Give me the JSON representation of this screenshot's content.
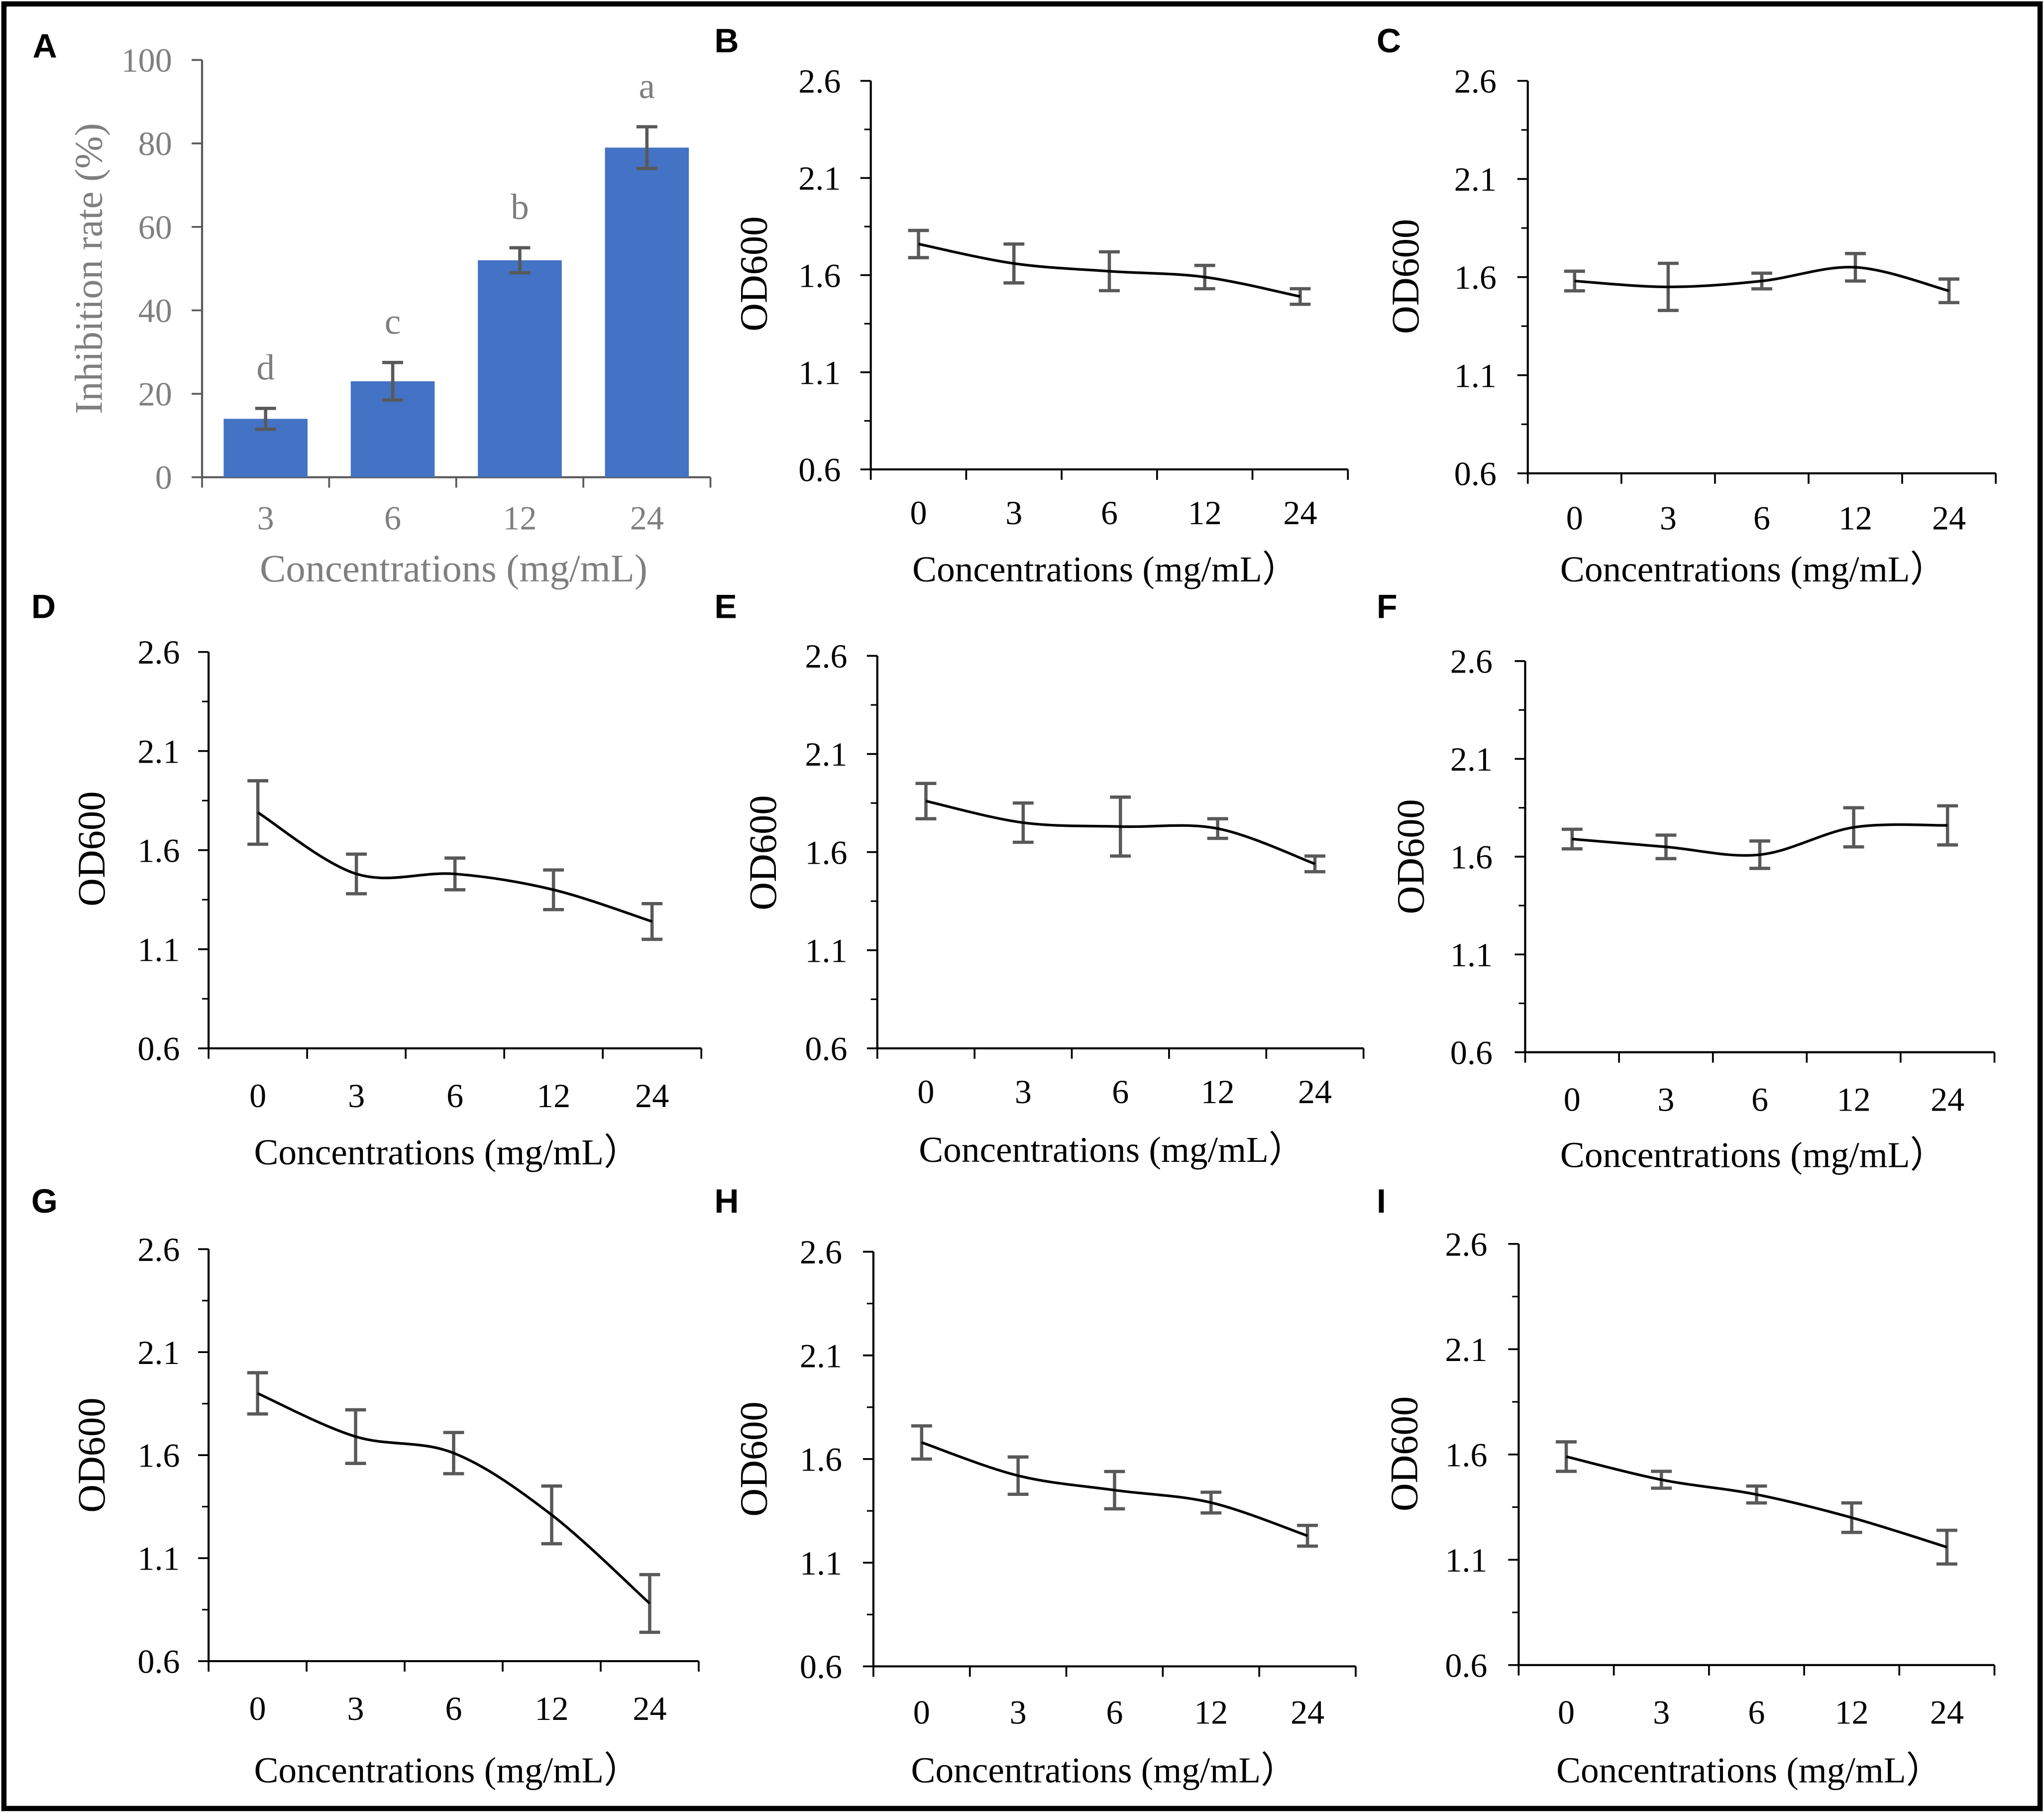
{
  "colors": {
    "bar_fill": "#4472C4",
    "panel_a_axis": "#595959",
    "panel_a_text": "#7F7F7F",
    "axis": "#000000",
    "text": "#000000",
    "line": "#000000",
    "error_bar": "#595959",
    "border": "#000000"
  },
  "chart_data": [
    {
      "panel": "A",
      "type": "bar",
      "categories": [
        "3",
        "6",
        "12",
        "24"
      ],
      "values": [
        14,
        23,
        52,
        79
      ],
      "errors": [
        2.5,
        4.5,
        3,
        5
      ],
      "significance_letters": [
        "d",
        "c",
        "b",
        "a"
      ],
      "xlabel": "Concentrations (mg/mL)",
      "ylabel": "Inhibition rate (%)",
      "ylim": [
        0,
        100
      ],
      "yticks": [
        "0",
        "20",
        "40",
        "60",
        "80",
        "100"
      ]
    },
    {
      "panel": "B",
      "type": "line",
      "categories": [
        "0",
        "3",
        "6",
        "12",
        "24"
      ],
      "values": [
        1.76,
        1.66,
        1.62,
        1.59,
        1.49
      ],
      "errors": [
        0.07,
        0.1,
        0.1,
        0.06,
        0.04
      ],
      "xlabel": "Concentrations (mg/mL）",
      "ylabel": "OD600",
      "ylim": [
        0.6,
        2.6
      ],
      "yticks": [
        "0.6",
        "1.1",
        "1.6",
        "2.1",
        "2.6"
      ]
    },
    {
      "panel": "C",
      "type": "line",
      "categories": [
        "0",
        "3",
        "6",
        "12",
        "24"
      ],
      "values": [
        1.58,
        1.55,
        1.58,
        1.65,
        1.53
      ],
      "errors": [
        0.05,
        0.12,
        0.04,
        0.07,
        0.06
      ],
      "xlabel": "Concentrations (mg/mL）",
      "ylabel": "OD600",
      "ylim": [
        0.6,
        2.6
      ],
      "yticks": [
        "0.6",
        "1.1",
        "1.6",
        "2.1",
        "2.6"
      ]
    },
    {
      "panel": "D",
      "type": "line",
      "categories": [
        "0",
        "3",
        "6",
        "12",
        "24"
      ],
      "values": [
        1.79,
        1.48,
        1.48,
        1.4,
        1.24
      ],
      "errors": [
        0.16,
        0.1,
        0.08,
        0.1,
        0.09
      ],
      "xlabel": "Concentrations (mg/mL）",
      "ylabel": "OD600",
      "ylim": [
        0.6,
        2.6
      ],
      "yticks": [
        "0.6",
        "1.1",
        "1.6",
        "2.1",
        "2.6"
      ]
    },
    {
      "panel": "E",
      "type": "line",
      "categories": [
        "0",
        "3",
        "6",
        "12",
        "24"
      ],
      "values": [
        1.86,
        1.75,
        1.73,
        1.72,
        1.54
      ],
      "errors": [
        0.09,
        0.1,
        0.15,
        0.05,
        0.04
      ],
      "xlabel": "Concentrations (mg/mL）",
      "ylabel": "OD600",
      "ylim": [
        0.6,
        2.6
      ],
      "yticks": [
        "0.6",
        "1.1",
        "1.6",
        "2.1",
        "2.6"
      ]
    },
    {
      "panel": "F",
      "type": "line",
      "categories": [
        "0",
        "3",
        "6",
        "12",
        "24"
      ],
      "values": [
        1.69,
        1.65,
        1.61,
        1.75,
        1.76
      ],
      "errors": [
        0.05,
        0.06,
        0.07,
        0.1,
        0.1
      ],
      "xlabel": "Concentrations (mg/mL）",
      "ylabel": "OD600",
      "ylim": [
        0.6,
        2.6
      ],
      "yticks": [
        "0.6",
        "1.1",
        "1.6",
        "2.1",
        "2.6"
      ]
    },
    {
      "panel": "G",
      "type": "line",
      "categories": [
        "0",
        "3",
        "6",
        "12",
        "24"
      ],
      "values": [
        1.9,
        1.69,
        1.61,
        1.31,
        0.88
      ],
      "errors": [
        0.1,
        0.13,
        0.1,
        0.14,
        0.14
      ],
      "xlabel": "Concentrations (mg/mL）",
      "ylabel": "OD600",
      "ylim": [
        0.6,
        2.6
      ],
      "yticks": [
        "0.6",
        "1.1",
        "1.6",
        "2.1",
        "2.6"
      ]
    },
    {
      "panel": "H",
      "type": "line",
      "categories": [
        "0",
        "3",
        "6",
        "12",
        "24"
      ],
      "values": [
        1.68,
        1.52,
        1.45,
        1.39,
        1.23
      ],
      "errors": [
        0.08,
        0.09,
        0.09,
        0.05,
        0.05
      ],
      "xlabel": "Concentrations (mg/mL）",
      "ylabel": "OD600",
      "ylim": [
        0.6,
        2.6
      ],
      "yticks": [
        "0.6",
        "1.1",
        "1.6",
        "2.1",
        "2.6"
      ]
    },
    {
      "panel": "I",
      "type": "line",
      "categories": [
        "0",
        "3",
        "6",
        "12",
        "24"
      ],
      "values": [
        1.59,
        1.48,
        1.41,
        1.3,
        1.16
      ],
      "errors": [
        0.07,
        0.04,
        0.04,
        0.07,
        0.08
      ],
      "xlabel": "Concentrations (mg/mL）",
      "ylabel": "OD600",
      "ylim": [
        0.6,
        2.6
      ],
      "yticks": [
        "0.6",
        "1.1",
        "1.6",
        "2.1",
        "2.6"
      ]
    }
  ]
}
